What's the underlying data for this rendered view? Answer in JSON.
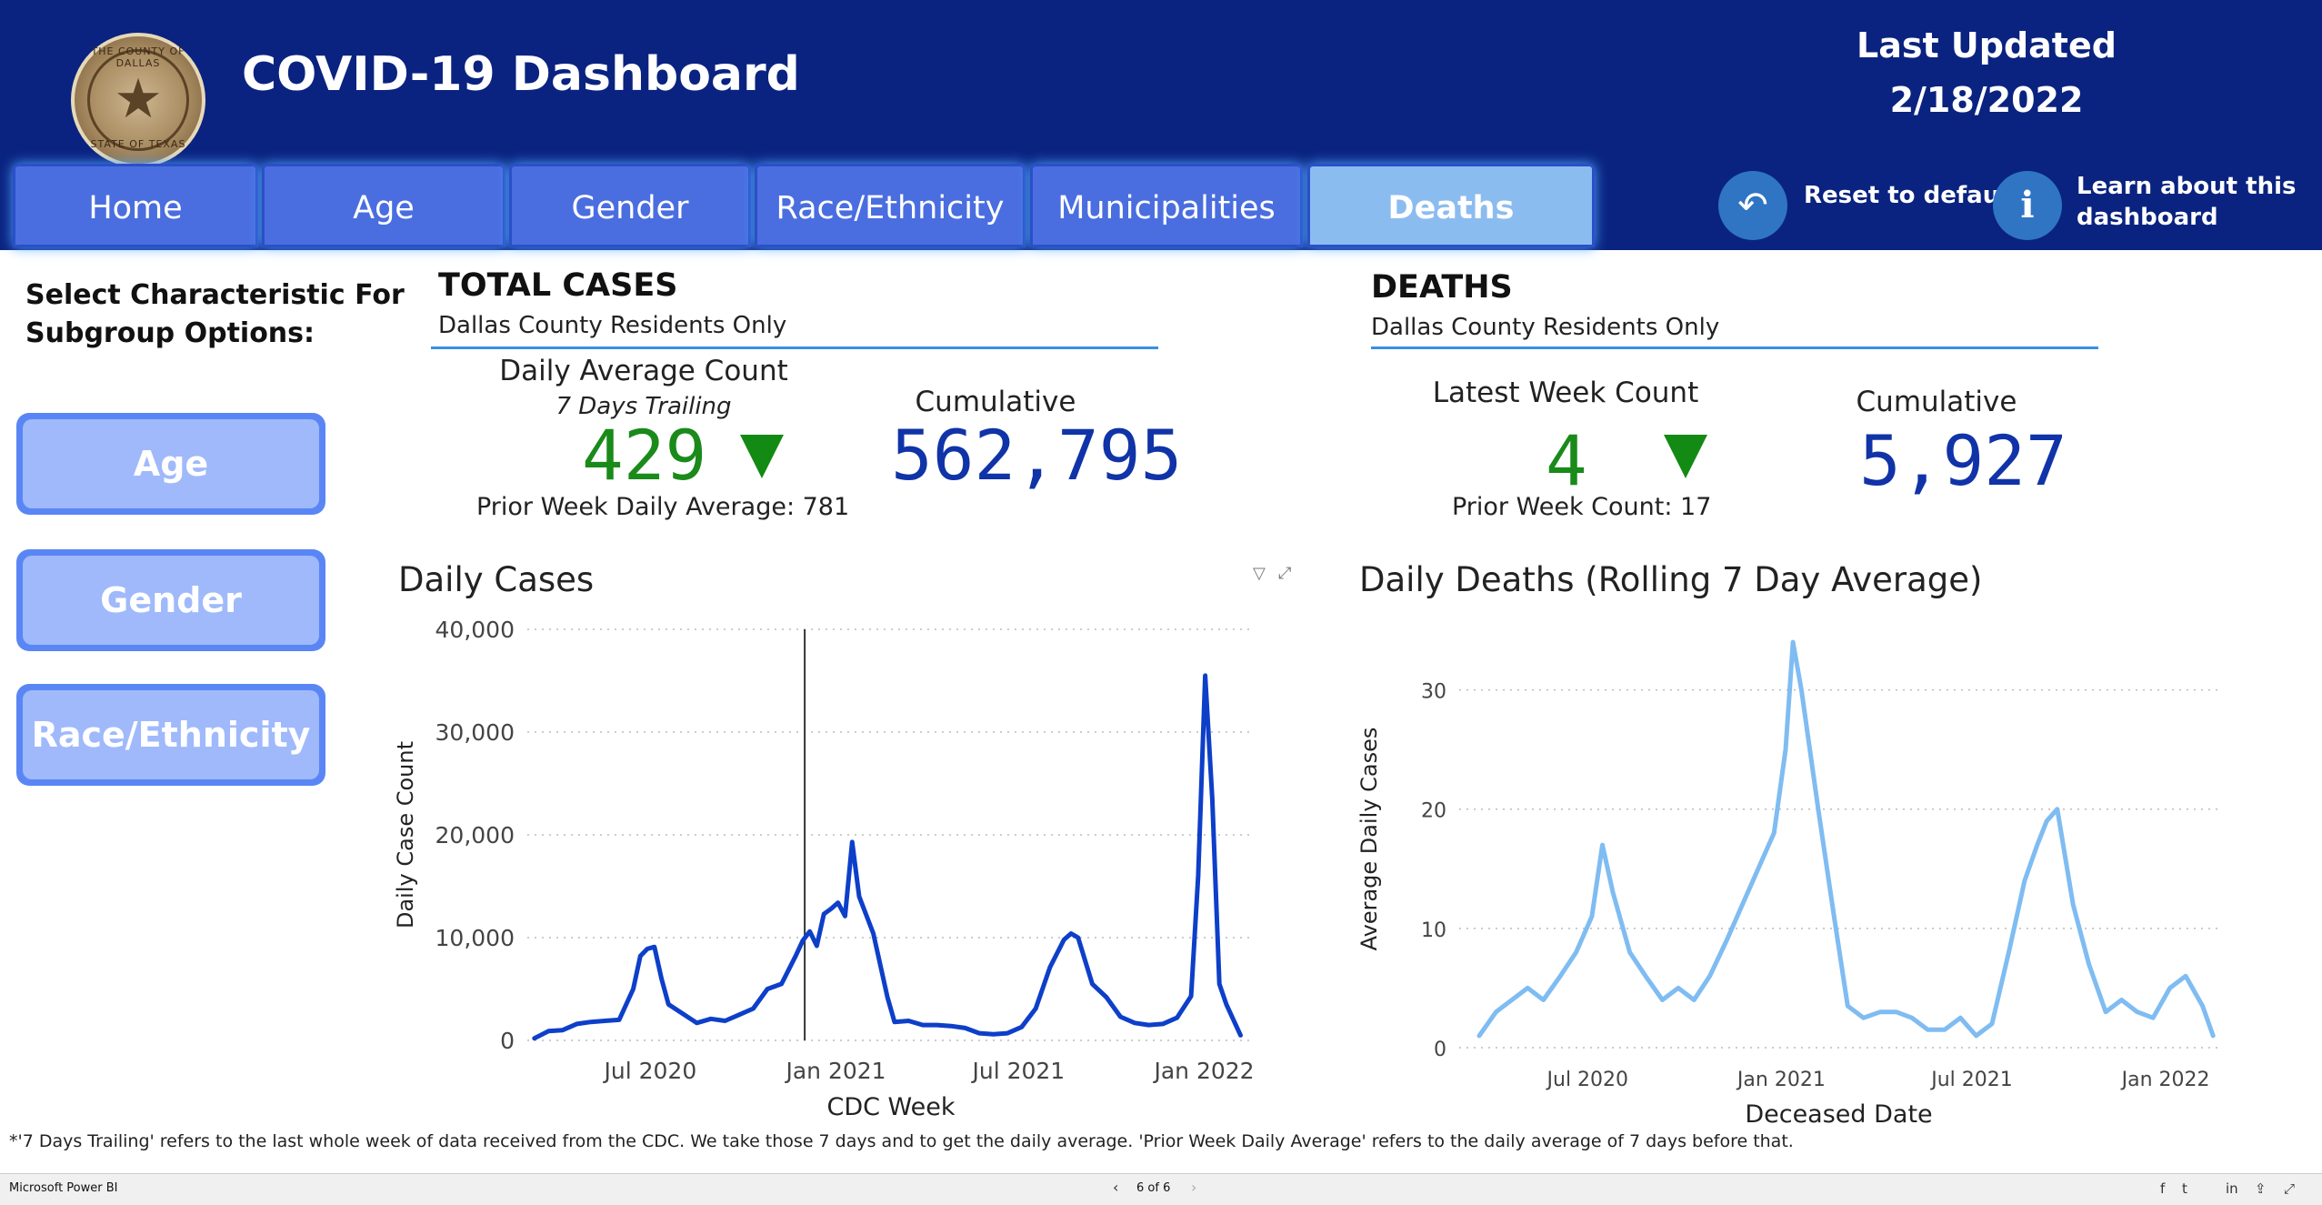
{
  "header": {
    "title": "COVID-19 Dashboard",
    "last_updated_label": "Last Updated",
    "last_updated_date": "2/18/2022",
    "seal_text_top": "THE COUNTY OF DALLAS",
    "seal_text_bottom": "STATE OF TEXAS"
  },
  "tabs": [
    {
      "label": "Home",
      "active": false
    },
    {
      "label": "Age",
      "active": false
    },
    {
      "label": "Gender",
      "active": false
    },
    {
      "label": "Race/Ethnicity",
      "active": false
    },
    {
      "label": "Municipalities",
      "active": false
    },
    {
      "label": "Deaths",
      "active": true
    }
  ],
  "actions": {
    "reset_label": "Reset to default",
    "reset_icon": "undo-arrow-icon",
    "learn_label_1": "Learn about this",
    "learn_label_2": "dashboard",
    "learn_icon": "info-icon"
  },
  "sidebar": {
    "heading_1": "Select Characteristic For",
    "heading_2": "Subgroup Options:",
    "buttons": [
      "Age",
      "Gender",
      "Race/Ethnicity"
    ]
  },
  "total_cases": {
    "title": "TOTAL CASES",
    "subtitle": "Dallas County Residents Only",
    "daily_avg_label": "Daily Average Count",
    "trailing_label": "7 Days Trailing",
    "daily_avg_value": "429",
    "prior_label": "Prior Week Daily Average: 781",
    "cumulative_label": "Cumulative",
    "cumulative_value": "562,795",
    "trend": "down"
  },
  "deaths": {
    "title": "DEATHS",
    "subtitle": "Dallas County Residents Only",
    "latest_label": "Latest Week Count",
    "latest_value": "4",
    "prior_label": "Prior Week Count: 17",
    "cumulative_label": "Cumulative",
    "cumulative_value": "5,927",
    "trend": "down"
  },
  "chart_data": [
    {
      "type": "line",
      "title": "Daily Cases",
      "xlabel": "CDC Week",
      "ylabel": "Daily Case Count",
      "ylim": [
        0,
        40000
      ],
      "yticks": [
        "0",
        "10,000",
        "20,000",
        "30,000",
        "40,000"
      ],
      "xticks": [
        "Jul 2020",
        "Jan 2021",
        "Jul 2021",
        "Jan 2022"
      ],
      "xtick_dates": [
        "2020-07-01",
        "2021-01-01",
        "2021-07-01",
        "2022-01-01"
      ],
      "x_range": [
        "2020-03-01",
        "2022-02-20"
      ],
      "color": "#0d3fc9",
      "grid": true,
      "marker_line": "2020-12-01",
      "x": [
        "2020-03-08",
        "2020-03-22",
        "2020-04-05",
        "2020-04-19",
        "2020-05-03",
        "2020-05-17",
        "2020-05-31",
        "2020-06-14",
        "2020-06-21",
        "2020-06-28",
        "2020-07-05",
        "2020-07-12",
        "2020-07-19",
        "2020-08-02",
        "2020-08-16",
        "2020-08-30",
        "2020-09-13",
        "2020-09-27",
        "2020-10-11",
        "2020-10-25",
        "2020-11-08",
        "2020-11-22",
        "2020-11-29",
        "2020-12-06",
        "2020-12-13",
        "2020-12-20",
        "2020-12-27",
        "2021-01-03",
        "2021-01-10",
        "2021-01-17",
        "2021-01-24",
        "2021-02-07",
        "2021-02-21",
        "2021-02-28",
        "2021-03-14",
        "2021-03-28",
        "2021-04-11",
        "2021-04-25",
        "2021-05-09",
        "2021-05-23",
        "2021-06-06",
        "2021-06-20",
        "2021-07-04",
        "2021-07-18",
        "2021-08-01",
        "2021-08-15",
        "2021-08-22",
        "2021-08-29",
        "2021-09-12",
        "2021-09-26",
        "2021-10-10",
        "2021-10-24",
        "2021-11-07",
        "2021-11-21",
        "2021-12-05",
        "2021-12-19",
        "2021-12-26",
        "2022-01-02",
        "2022-01-09",
        "2022-01-16",
        "2022-01-23",
        "2022-02-06"
      ],
      "values": [
        200,
        900,
        1000,
        1600,
        1800,
        1900,
        2000,
        5000,
        8200,
        8900,
        9100,
        6000,
        3500,
        2600,
        1700,
        2100,
        1900,
        2500,
        3100,
        5000,
        5500,
        8200,
        9700,
        10600,
        9200,
        12300,
        12800,
        13400,
        12100,
        19300,
        14000,
        10400,
        4200,
        1800,
        1900,
        1500,
        1500,
        1400,
        1200,
        700,
        600,
        700,
        1300,
        3100,
        7100,
        9800,
        10400,
        10000,
        5500,
        4200,
        2300,
        1700,
        1500,
        1600,
        2200,
        4300,
        16000,
        35500,
        23500,
        5500,
        3500,
        500
      ]
    },
    {
      "type": "line",
      "title": "Daily Deaths (Rolling 7 Day Average)",
      "xlabel": "Deceased Date",
      "ylabel": "Average Daily Cases",
      "ylim": [
        0,
        35
      ],
      "yticks": [
        "0",
        "10",
        "20",
        "30"
      ],
      "xticks": [
        "Jul 2020",
        "Jan 2021",
        "Jul 2021",
        "Jan 2022"
      ],
      "xtick_dates": [
        "2020-07-01",
        "2021-01-01",
        "2021-07-01",
        "2022-01-01"
      ],
      "x_range": [
        "2020-03-01",
        "2022-02-20"
      ],
      "color": "#7fbcf2",
      "grid": true,
      "x": [
        "2020-03-20",
        "2020-04-05",
        "2020-04-20",
        "2020-05-05",
        "2020-05-20",
        "2020-06-05",
        "2020-06-20",
        "2020-07-05",
        "2020-07-15",
        "2020-07-25",
        "2020-08-10",
        "2020-08-25",
        "2020-09-10",
        "2020-09-25",
        "2020-10-10",
        "2020-10-25",
        "2020-11-10",
        "2020-11-25",
        "2020-12-10",
        "2020-12-25",
        "2021-01-05",
        "2021-01-12",
        "2021-01-20",
        "2021-02-05",
        "2021-02-20",
        "2021-03-05",
        "2021-03-20",
        "2021-04-05",
        "2021-04-20",
        "2021-05-05",
        "2021-05-20",
        "2021-06-05",
        "2021-06-20",
        "2021-07-05",
        "2021-07-20",
        "2021-08-05",
        "2021-08-20",
        "2021-09-01",
        "2021-09-10",
        "2021-09-20",
        "2021-10-05",
        "2021-10-20",
        "2021-11-05",
        "2021-11-20",
        "2021-12-05",
        "2021-12-20",
        "2022-01-05",
        "2022-01-20",
        "2022-02-05",
        "2022-02-15"
      ],
      "values": [
        1,
        3,
        4,
        5,
        4,
        6,
        8,
        11,
        17,
        13,
        8,
        6,
        4,
        5,
        4,
        6,
        9,
        12,
        15,
        18,
        25,
        34,
        30,
        20,
        11,
        3.5,
        2.5,
        3,
        3,
        2.5,
        1.5,
        1.5,
        2.5,
        1,
        2,
        8,
        14,
        17,
        19,
        20,
        12,
        7,
        3,
        4,
        3,
        2.5,
        5,
        6,
        3.5,
        1
      ]
    }
  ],
  "footnote": "*'7 Days Trailing' refers to the last whole week of data received from the CDC. We take those 7 days and to get the daily average. 'Prior Week Daily Average' refers to the daily average of 7 days before that.",
  "statusbar": {
    "app_name": "Microsoft Power BI",
    "page_indicator": "6 of 6",
    "prev_icon": "chevron-left-icon",
    "next_icon": "chevron-right-icon",
    "share_icons": [
      "facebook-icon",
      "twitter-icon",
      "linkedin-icon",
      "share-icon",
      "fullscreen-icon"
    ]
  }
}
